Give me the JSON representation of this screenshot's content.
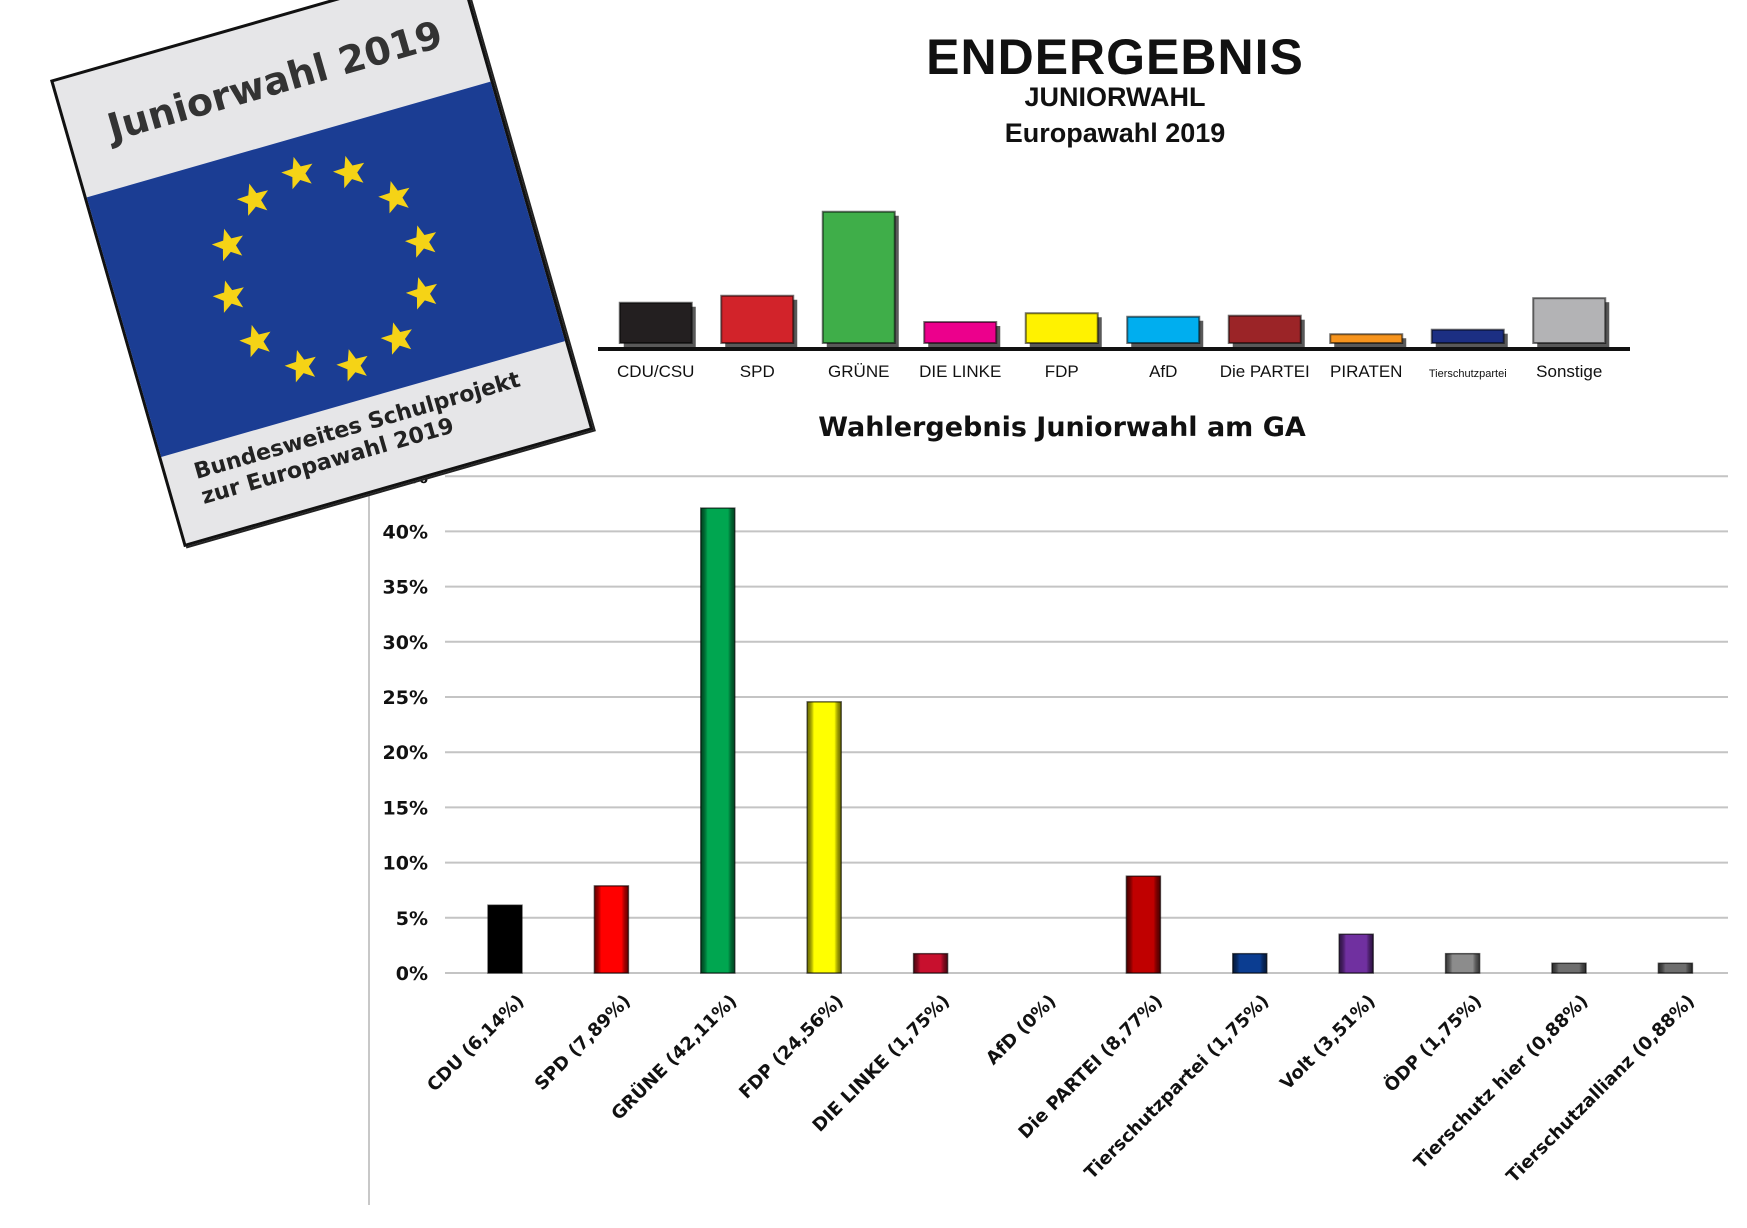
{
  "header": {
    "title": "ENDERGEBNIS",
    "subtitle": "JUNIORWAHL",
    "subtitle2": "Europawahl 2019"
  },
  "poster": {
    "title": "Juniorwahl 2019",
    "line1": "Bundesweites Schulprojekt",
    "line2": "zur Europawahl 2019",
    "flag_color": "#1b3d93",
    "star_color": "#f5d316",
    "star_count": 12
  },
  "chart_data": [
    {
      "type": "bar",
      "title": "ENDERGEBNIS JUNIORWAHL Europawahl 2019",
      "categories": [
        "CDU/CSU",
        "SPD",
        "GRÜNE",
        "DIE LINKE",
        "FDP",
        "AfD",
        "Die PARTEI",
        "PIRATEN",
        "Tierschutzpartei",
        "Sonstige"
      ],
      "values": [
        11.5,
        13.5,
        37.5,
        6.0,
        8.5,
        7.5,
        7.8,
        2.5,
        3.8,
        12.8
      ],
      "colors": [
        "#231f20",
        "#d2232a",
        "#3fae49",
        "#ec008c",
        "#fff200",
        "#00aeef",
        "#9b2427",
        "#f7941d",
        "#1c2f83",
        "#b3b3b5"
      ],
      "xlabel": "",
      "ylabel": "",
      "ylim": [
        0,
        40
      ],
      "grid": false,
      "legend": "none",
      "note": "values are approximate, no axis shown"
    },
    {
      "type": "bar",
      "title": "Wahlergebnis Juniorwahl am GA",
      "categories": [
        "CDU (6,14%)",
        "SPD (7,89%)",
        "GRÜNE (42,11%)",
        "FDP (24,56%)",
        "DIE LINKE (1,75%)",
        "AfD (0%)",
        "Die PARTEI (8,77%)",
        "Tierschutzpartei (1,75%)",
        "Volt (3,51%)",
        "ÖDP (1,75%)",
        "Tierschutz hier (0,88%)",
        "Tierschutzallianz (0,88%)"
      ],
      "values": [
        6.14,
        7.89,
        42.11,
        24.56,
        1.75,
        0,
        8.77,
        1.75,
        3.51,
        1.75,
        0.88,
        0.88
      ],
      "colors": [
        "#000000",
        "#ff0000",
        "#00a650",
        "#ffff00",
        "#c8102e",
        "#009ee0",
        "#c00000",
        "#0b3d91",
        "#7030a0",
        "#8c8c8c",
        "#6e6e6e",
        "#6e6e6e"
      ],
      "yticks": [
        "0%",
        "5%",
        "10%",
        "15%",
        "20%",
        "25%",
        "30%",
        "35%",
        "40%",
        "45%"
      ],
      "ytick_values": [
        0,
        5,
        10,
        15,
        20,
        25,
        30,
        35,
        40,
        45
      ],
      "ylim": [
        0,
        45
      ],
      "xlabel": "",
      "ylabel": "",
      "grid": true,
      "legend": "none"
    }
  ]
}
